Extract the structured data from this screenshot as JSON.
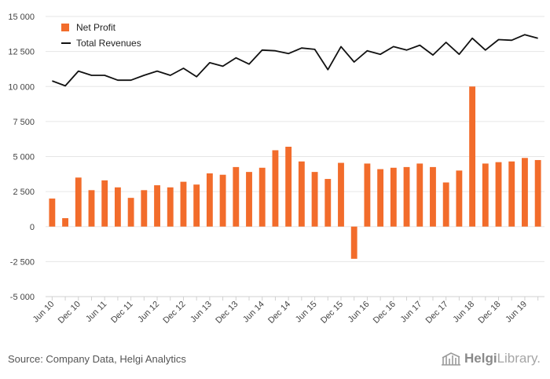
{
  "chart_data": {
    "type": "bar",
    "ylim": [
      -5000,
      15000
    ],
    "yticks": [
      15000,
      12500,
      10000,
      7500,
      5000,
      2500,
      0,
      -2500,
      -5000
    ],
    "ytick_labels": [
      "15 000",
      "12 500",
      "10 000",
      "7 500",
      "5 000",
      "2 500",
      "0",
      "-2 500",
      "-5 000"
    ],
    "grid": true,
    "legend_position": "top-left",
    "x_tick_labels": [
      "Jun 10",
      "Dec 10",
      "Jun 11",
      "Dec 11",
      "Jun 12",
      "Dec 12",
      "Jun 13",
      "Dec 13",
      "Jun 14",
      "Dec 14",
      "Jun 15",
      "Dec 15",
      "Jun 16",
      "Dec 16",
      "Jun 17",
      "Dec 17",
      "Jun 18",
      "Dec 18",
      "Jun 19"
    ],
    "categories": [
      "Jun 10",
      "Sep 10",
      "Dec 10",
      "Mar 11",
      "Jun 11",
      "Sep 11",
      "Dec 11",
      "Mar 12",
      "Jun 12",
      "Sep 12",
      "Dec 12",
      "Mar 13",
      "Jun 13",
      "Sep 13",
      "Dec 13",
      "Mar 14",
      "Jun 14",
      "Sep 14",
      "Dec 14",
      "Mar 15",
      "Jun 15",
      "Sep 15",
      "Dec 15",
      "Mar 16",
      "Jun 16",
      "Sep 16",
      "Dec 16",
      "Mar 17",
      "Jun 17",
      "Sep 17",
      "Dec 17",
      "Mar 18",
      "Jun 18",
      "Sep 18",
      "Dec 18",
      "Mar 19",
      "Jun 19",
      "Sep 19"
    ],
    "series": [
      {
        "name": "Net Profit",
        "kind": "bar",
        "color": "#f26c2b",
        "values": [
          2000,
          600,
          3500,
          2600,
          3300,
          2800,
          2050,
          2600,
          2950,
          2800,
          3200,
          3000,
          3800,
          3700,
          4250,
          3900,
          4200,
          5450,
          5700,
          4650,
          3900,
          3400,
          4550,
          -2300,
          4500,
          4100,
          4200,
          4250,
          4500,
          4250,
          3150,
          4000,
          10000,
          4500,
          4600,
          4650,
          4900,
          4750
        ]
      },
      {
        "name": "Total Revenues",
        "kind": "line",
        "color": "#111111",
        "values": [
          10400,
          10050,
          11100,
          10800,
          10800,
          10450,
          10450,
          10800,
          11100,
          10800,
          11300,
          10700,
          11700,
          11450,
          12050,
          11600,
          12600,
          12550,
          12350,
          12750,
          12650,
          11200,
          12850,
          11750,
          12550,
          12300,
          12850,
          12600,
          12950,
          12250,
          13150,
          12300,
          13450,
          12600,
          13350,
          13300,
          13700,
          13450
        ]
      }
    ]
  },
  "footer": {
    "source": "Source: Company Data, Helgi Analytics",
    "brand_bold": "Helgi",
    "brand_light": "Library."
  },
  "colors": {
    "accent": "#f26c2b",
    "line": "#111111",
    "grid": "#e6e6e6"
  }
}
